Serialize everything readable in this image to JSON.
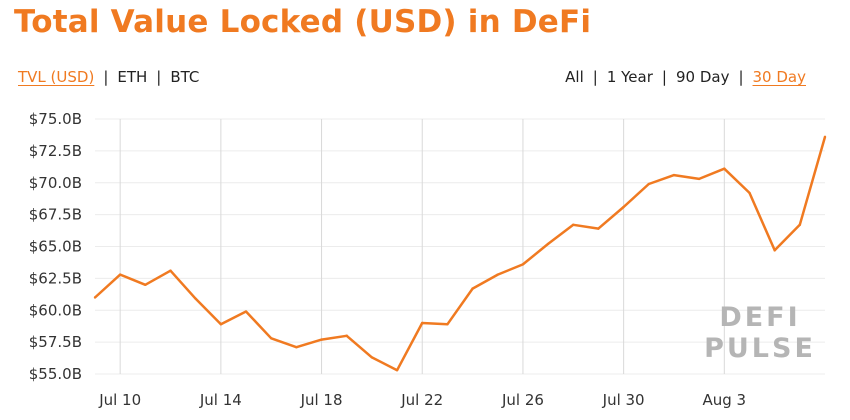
{
  "title": "Total Value Locked (USD) in DeFi",
  "metric_options": [
    {
      "label": "TVL (USD)",
      "active": true
    },
    {
      "label": "ETH",
      "active": false
    },
    {
      "label": "BTC",
      "active": false
    }
  ],
  "range_options": [
    {
      "label": "All",
      "active": false
    },
    {
      "label": "1 Year",
      "active": false
    },
    {
      "label": "90 Day",
      "active": false
    },
    {
      "label": "30 Day",
      "active": true
    }
  ],
  "watermark": [
    "DEFI",
    "PULSE"
  ],
  "colors": {
    "accent": "#f07a21",
    "line": "#f07a21",
    "watermark": "#b5b5b5"
  },
  "chart_data": {
    "type": "line",
    "title": "Total Value Locked (USD) in DeFi",
    "xlabel": "",
    "ylabel": "",
    "ylim": [
      55.0,
      75.0
    ],
    "y_unit": "USD billions",
    "y_ticks": [
      55.0,
      57.5,
      60.0,
      62.5,
      65.0,
      67.5,
      70.0,
      72.5,
      75.0
    ],
    "y_tick_labels": [
      "$55.0B",
      "$57.5B",
      "$60.0B",
      "$62.5B",
      "$65.0B",
      "$67.5B",
      "$70.0B",
      "$72.5B",
      "$75.0B"
    ],
    "x_range": [
      "Jul 9",
      "Aug 7"
    ],
    "x_ticks": [
      "Jul 10",
      "Jul 14",
      "Jul 18",
      "Jul 22",
      "Jul 26",
      "Jul 30",
      "Aug 3"
    ],
    "grid": {
      "vertical": true,
      "horizontal": true
    },
    "legend": "none",
    "series": [
      {
        "x": [
          "Jul 9",
          "Jul 10",
          "Jul 11",
          "Jul 12",
          "Jul 13",
          "Jul 14",
          "Jul 15",
          "Jul 16",
          "Jul 17",
          "Jul 18",
          "Jul 19",
          "Jul 20",
          "Jul 21",
          "Jul 22",
          "Jul 23",
          "Jul 24",
          "Jul 25",
          "Jul 26",
          "Jul 27",
          "Jul 28",
          "Jul 29",
          "Jul 30",
          "Jul 31",
          "Aug 1",
          "Aug 2",
          "Aug 3",
          "Aug 4",
          "Aug 5",
          "Aug 6",
          "Aug 7"
        ],
        "values": [
          61.0,
          62.8,
          62.0,
          63.1,
          60.9,
          58.9,
          59.9,
          57.8,
          57.1,
          57.7,
          58.0,
          56.3,
          55.3,
          59.0,
          58.9,
          61.7,
          62.8,
          63.6,
          65.2,
          66.7,
          66.4,
          68.1,
          69.9,
          70.6,
          70.3,
          71.1,
          69.2,
          64.7,
          66.7,
          73.6
        ]
      }
    ]
  }
}
